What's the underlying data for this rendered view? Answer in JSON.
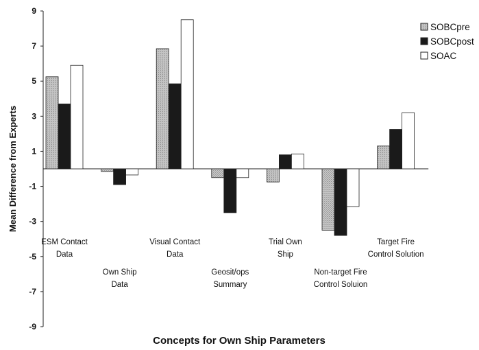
{
  "chart_data": {
    "type": "bar",
    "title": "",
    "xlabel": "Concepts for Own Ship Parameters",
    "ylabel": "Mean Difference from Experts",
    "ylim": [
      -9,
      9
    ],
    "yticks": [
      9,
      7,
      5,
      3,
      1,
      -1,
      -3,
      -5,
      -7,
      -9
    ],
    "categories": [
      "ESM Contact Data",
      "Own Ship Data",
      "Visual Contact Data",
      "Geosit/ops Summary",
      "Trial Own Ship",
      "Non-target Fire Control Soluion",
      "Target Fire Control Solution"
    ],
    "category_label_lines": [
      [
        "ESM Contact",
        "Data"
      ],
      [
        "Own Ship",
        "Data"
      ],
      [
        "Visual Contact",
        "Data"
      ],
      [
        "Geosit/ops",
        "Summary"
      ],
      [
        "Trial Own",
        "Ship"
      ],
      [
        "Non-target Fire",
        "Control Soluion"
      ],
      [
        "Target Fire",
        "Control Solution"
      ]
    ],
    "series": [
      {
        "name": "SOBCpre",
        "color": "#b8b8b8",
        "values": [
          5.25,
          -0.15,
          6.85,
          -0.5,
          -0.75,
          -3.5,
          1.3
        ]
      },
      {
        "name": "SOBCpost",
        "color": "#1a1a1a",
        "values": [
          3.7,
          -0.9,
          4.85,
          -2.5,
          0.8,
          -3.8,
          2.25
        ]
      },
      {
        "name": "SOAC",
        "color": "#ffffff",
        "values": [
          5.9,
          -0.35,
          8.5,
          -0.5,
          0.85,
          -2.15,
          3.2
        ]
      }
    ],
    "legend_position": "top-right",
    "grid": false
  }
}
